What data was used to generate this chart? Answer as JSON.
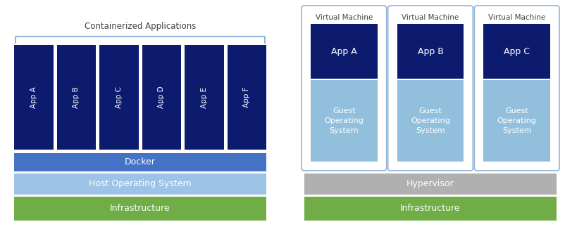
{
  "bg_color": "#ffffff",
  "dark_navy": "#0d1b6e",
  "docker_blue": "#4472c4",
  "host_os_blue": "#9dc3e6",
  "lighter_blue": "#92cddc",
  "guest_os_blue": "#92c0dc",
  "green": "#70ad47",
  "gray": "#b0b0b0",
  "white": "#ffffff",
  "border_blue": "#92b4d4",
  "text_dark": "#404040",
  "left_apps": [
    "App A",
    "App B",
    "App C",
    "App D",
    "App E",
    "App F"
  ],
  "right_apps": [
    "App A",
    "App B",
    "App C"
  ],
  "containerized_label": "Containerized Applications",
  "docker_label": "Docker",
  "host_os_label": "Host Operating System",
  "infra_label": "Infrastructure",
  "hypervisor_label": "Hypervisor",
  "vm_label": "Virtual Machine",
  "guest_os_label": "Guest\nOperating\nSystem"
}
